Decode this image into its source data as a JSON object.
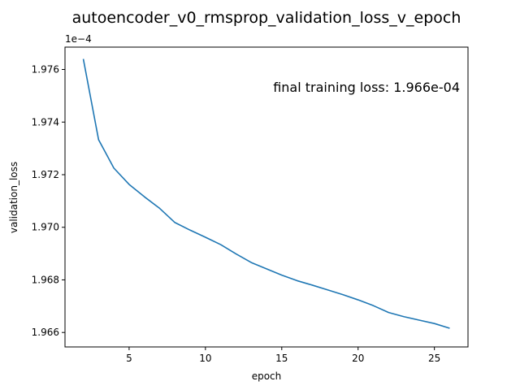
{
  "chart_data": {
    "type": "line",
    "title": "autoencoder_v0_rmsprop_validation_loss_v_epoch",
    "xlabel": "epoch",
    "ylabel": "validation_loss",
    "y_offset_label": "1e−4",
    "annotation": "final training loss: 1.966e-04",
    "xlim": [
      0.8,
      27.2
    ],
    "ylim": [
      1.96545,
      1.97685
    ],
    "x_ticks": [
      5,
      10,
      15,
      20,
      25
    ],
    "x_tick_labels": [
      "5",
      "10",
      "15",
      "20",
      "25"
    ],
    "y_ticks": [
      1.966,
      1.968,
      1.97,
      1.972,
      1.974,
      1.976
    ],
    "y_tick_labels": [
      "1.966",
      "1.968",
      "1.970",
      "1.972",
      "1.974",
      "1.976"
    ],
    "grid": false,
    "series": [
      {
        "color": "#1f77b4",
        "x": [
          2,
          3,
          4,
          5,
          6,
          7,
          8,
          9,
          10,
          11,
          12,
          13,
          14,
          15,
          16,
          17,
          18,
          19,
          20,
          21,
          22,
          23,
          24,
          25,
          26
        ],
        "y": [
          1.9764,
          1.97333,
          1.97225,
          1.97163,
          1.97116,
          1.97072,
          1.97018,
          1.96989,
          1.96962,
          1.96934,
          1.96899,
          1.96866,
          1.96842,
          1.96818,
          1.96797,
          1.9678,
          1.96762,
          1.96744,
          1.96724,
          1.96702,
          1.96676,
          1.9666,
          1.96647,
          1.96634,
          1.96616
        ]
      }
    ]
  }
}
